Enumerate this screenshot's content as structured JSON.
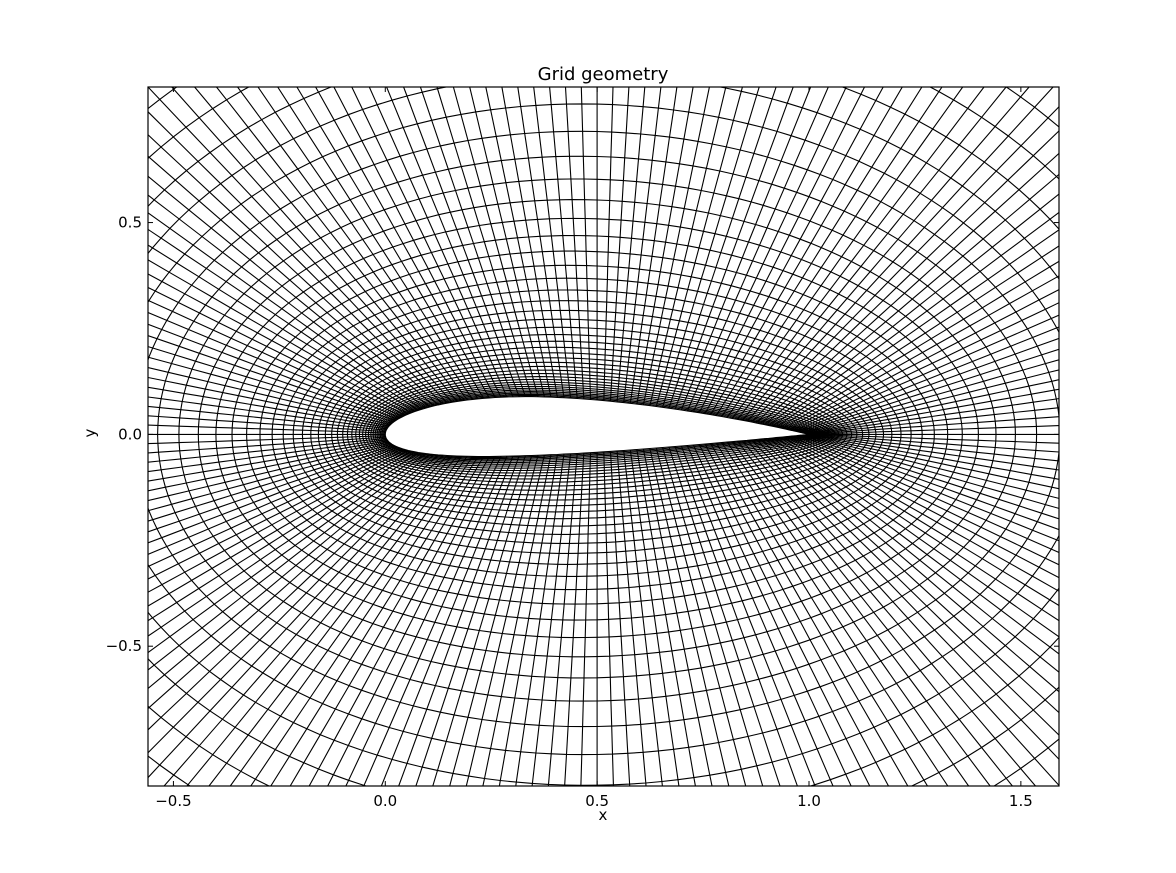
{
  "chart_data": {
    "type": "line",
    "title": "Grid geometry",
    "xlabel": "x",
    "ylabel": "y",
    "xlim": [
      -0.56,
      1.59
    ],
    "ylim": [
      -0.83,
      0.82
    ],
    "aspect": "equal",
    "xticks": [
      -0.5,
      0.0,
      0.5,
      1.0,
      1.5
    ],
    "xtick_labels": [
      "−0.5",
      "0.0",
      "0.5",
      "1.0",
      "1.5"
    ],
    "yticks": [
      -0.5,
      0.0,
      0.5
    ],
    "ytick_labels": [
      "−0.5",
      "0.0",
      "0.5"
    ],
    "grid": false,
    "line_color": "#000000",
    "mesh": {
      "kind": "O-grid around cambered airfoil",
      "leading_edge": [
        0.0,
        0.0
      ],
      "trailing_edge": [
        1.0,
        0.0
      ],
      "max_upper_y": 0.09,
      "min_lower_y": -0.05,
      "radial_lines": 200,
      "rings": 46
    }
  }
}
